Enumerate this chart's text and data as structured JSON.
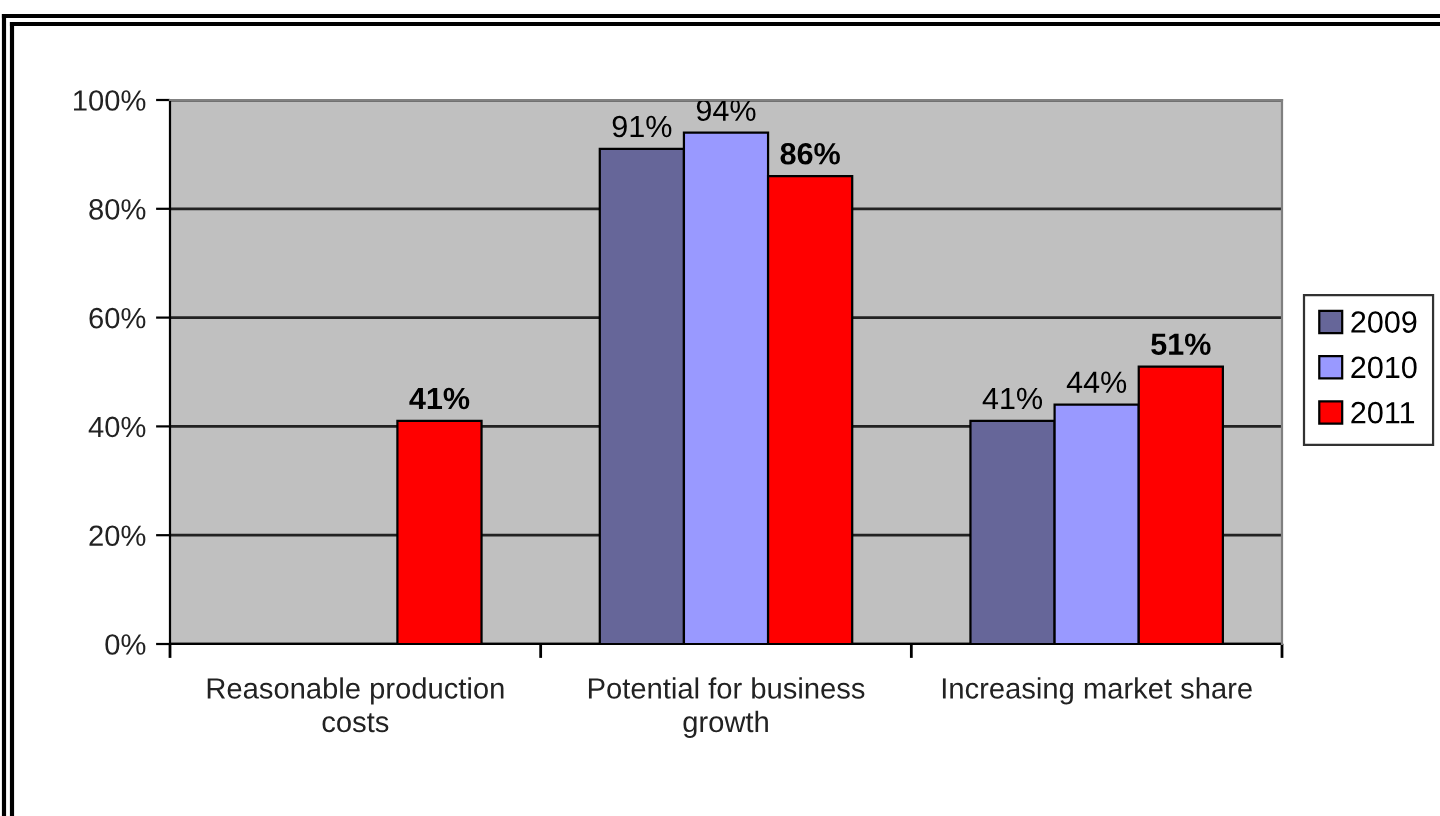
{
  "chart_data": {
    "type": "bar",
    "categories": [
      "Reasonable production costs",
      "Potential for business growth",
      "Increasing market share"
    ],
    "series": [
      {
        "name": "2009",
        "color": "#666699",
        "values": [
          null,
          91,
          41
        ],
        "value_labels": [
          null,
          "91%",
          "41%"
        ]
      },
      {
        "name": "2010",
        "color": "#9999ff",
        "values": [
          null,
          94,
          44
        ],
        "value_labels": [
          null,
          "94%",
          "44%"
        ]
      },
      {
        "name": "2011",
        "color": "#ff0000",
        "values": [
          41,
          86,
          51
        ],
        "value_labels": [
          "41%",
          "86%",
          "51%"
        ]
      }
    ],
    "ylim": [
      0,
      100
    ],
    "yticks": [
      {
        "value": 0,
        "label": "0%"
      },
      {
        "value": 20,
        "label": "20%"
      },
      {
        "value": 40,
        "label": "40%"
      },
      {
        "value": 60,
        "label": "60%"
      },
      {
        "value": 80,
        "label": "80%"
      },
      {
        "value": 100,
        "label": "100%"
      }
    ],
    "grid": "y",
    "legend": "right"
  }
}
